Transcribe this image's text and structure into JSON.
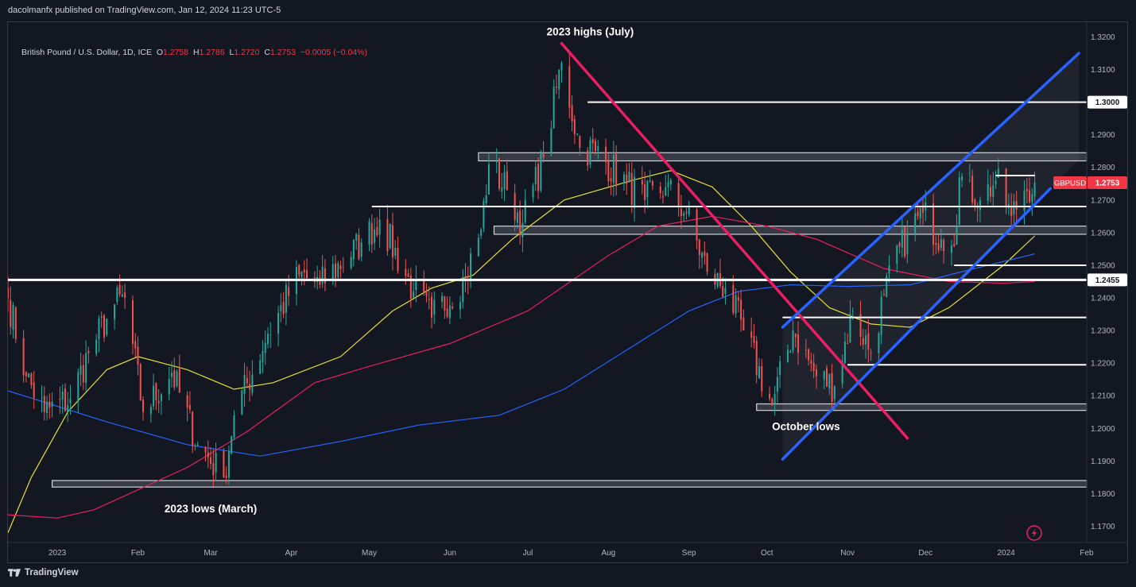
{
  "publisher": "dacolmanfx published on TradingView.com, Jan 12, 2024 11:23 UTC-5",
  "footer": {
    "brand": "TradingView",
    "logo_icon": "tradingview-logo-icon"
  },
  "legend": {
    "symbol": "British Pound / U.S. Dollar, 1D, ICE",
    "open_label": "O",
    "open": "1.2758",
    "high_label": "H",
    "high": "1.2786",
    "low_label": "L",
    "low": "1.2720",
    "close_label": "C",
    "close": "1.2753",
    "change": "−0.0005 (−0.04%)"
  },
  "colors": {
    "background": "#131722",
    "up": "#26a69a",
    "down": "#ef5350",
    "trendline_down": "#e91e63",
    "channel": "#2962ff",
    "ma_fast": "#e6e02a",
    "ma_mid": "#e91e63",
    "ma_slow": "#2962ff",
    "price_badge": "#f23645",
    "zone": "#9598a1"
  },
  "chart_data": {
    "type": "candlestick",
    "symbol": "GBPUSD",
    "timeframe": "1D",
    "ylim": [
      1.165,
      1.3245
    ],
    "y_ticks": [
      1.17,
      1.18,
      1.19,
      1.2,
      1.21,
      1.22,
      1.23,
      1.24,
      1.25,
      1.26,
      1.27,
      1.28,
      1.29,
      1.3,
      1.31,
      1.32
    ],
    "x_start": "2022-12-13",
    "x_end": "2024-02-01",
    "x_ticks": [
      {
        "date": "2023-01-01",
        "label": "2023"
      },
      {
        "date": "2023-02-01",
        "label": "Feb"
      },
      {
        "date": "2023-03-01",
        "label": "Mar"
      },
      {
        "date": "2023-04-01",
        "label": "Apr"
      },
      {
        "date": "2023-05-01",
        "label": "May"
      },
      {
        "date": "2023-06-01",
        "label": "Jun"
      },
      {
        "date": "2023-07-01",
        "label": "Jul"
      },
      {
        "date": "2023-08-01",
        "label": "Aug"
      },
      {
        "date": "2023-09-01",
        "label": "Sep"
      },
      {
        "date": "2023-10-01",
        "label": "Oct"
      },
      {
        "date": "2023-11-01",
        "label": "Nov"
      },
      {
        "date": "2023-12-01",
        "label": "Dec"
      },
      {
        "date": "2024-01-01",
        "label": "2024"
      },
      {
        "date": "2024-02-01",
        "label": "Feb"
      }
    ],
    "close_anchors": [
      [
        "2022-12-13",
        1.24
      ],
      [
        "2022-12-20",
        1.216
      ],
      [
        "2022-12-27",
        1.205
      ],
      [
        "2023-01-06",
        1.209
      ],
      [
        "2023-01-13",
        1.223
      ],
      [
        "2023-01-23",
        1.238
      ],
      [
        "2023-01-27",
        1.24
      ],
      [
        "2023-02-03",
        1.205
      ],
      [
        "2023-02-14",
        1.217
      ],
      [
        "2023-02-24",
        1.195
      ],
      [
        "2023-03-06",
        1.185
      ],
      [
        "2023-03-10",
        1.204
      ],
      [
        "2023-03-23",
        1.229
      ],
      [
        "2023-04-04",
        1.247
      ],
      [
        "2023-04-12",
        1.244
      ],
      [
        "2023-04-28",
        1.257
      ],
      [
        "2023-05-05",
        1.264
      ],
      [
        "2023-05-18",
        1.242
      ],
      [
        "2023-05-25",
        1.234
      ],
      [
        "2023-06-07",
        1.246
      ],
      [
        "2023-06-13",
        1.261
      ],
      [
        "2023-06-16",
        1.281
      ],
      [
        "2023-06-23",
        1.273
      ],
      [
        "2023-06-29",
        1.263
      ],
      [
        "2023-07-07",
        1.283
      ],
      [
        "2023-07-14",
        1.312
      ],
      [
        "2023-07-21",
        1.286
      ],
      [
        "2023-07-27",
        1.285
      ],
      [
        "2023-08-08",
        1.275
      ],
      [
        "2023-08-15",
        1.27
      ],
      [
        "2023-08-23",
        1.274
      ],
      [
        "2023-08-31",
        1.266
      ],
      [
        "2023-09-08",
        1.248
      ],
      [
        "2023-09-15",
        1.243
      ],
      [
        "2023-09-22",
        1.23
      ],
      [
        "2023-10-03",
        1.207
      ],
      [
        "2023-10-11",
        1.23
      ],
      [
        "2023-10-20",
        1.216
      ],
      [
        "2023-10-27",
        1.213
      ],
      [
        "2023-11-03",
        1.236
      ],
      [
        "2023-11-10",
        1.223
      ],
      [
        "2023-11-15",
        1.241
      ],
      [
        "2023-11-24",
        1.26
      ],
      [
        "2023-11-30",
        1.266
      ],
      [
        "2023-12-07",
        1.258
      ],
      [
        "2023-12-13",
        1.262
      ],
      [
        "2023-12-14",
        1.277
      ],
      [
        "2023-12-22",
        1.27
      ],
      [
        "2023-12-28",
        1.276
      ],
      [
        "2024-01-03",
        1.265
      ],
      [
        "2024-01-08",
        1.273
      ],
      [
        "2024-01-12",
        1.2753
      ]
    ],
    "moving_averages": [
      {
        "color": "#e6e02a",
        "points": [
          [
            "2022-12-13",
            1.168
          ],
          [
            "2022-12-22",
            1.185
          ],
          [
            "2023-01-05",
            1.205
          ],
          [
            "2023-01-20",
            1.218
          ],
          [
            "2023-02-01",
            1.222
          ],
          [
            "2023-02-20",
            1.218
          ],
          [
            "2023-03-10",
            1.212
          ],
          [
            "2023-03-25",
            1.214
          ],
          [
            "2023-04-20",
            1.222
          ],
          [
            "2023-05-10",
            1.236
          ],
          [
            "2023-05-25",
            1.243
          ],
          [
            "2023-06-10",
            1.247
          ],
          [
            "2023-06-25",
            1.258
          ],
          [
            "2023-07-15",
            1.27
          ],
          [
            "2023-08-10",
            1.276
          ],
          [
            "2023-08-25",
            1.279
          ],
          [
            "2023-09-10",
            1.274
          ],
          [
            "2023-09-25",
            1.262
          ],
          [
            "2023-10-10",
            1.248
          ],
          [
            "2023-10-25",
            1.237
          ],
          [
            "2023-11-10",
            1.232
          ],
          [
            "2023-11-25",
            1.231
          ],
          [
            "2023-12-10",
            1.237
          ],
          [
            "2023-12-31",
            1.25
          ],
          [
            "2024-01-12",
            1.259
          ]
        ]
      },
      {
        "color": "#e91e63",
        "points": [
          [
            "2022-12-13",
            1.1735
          ],
          [
            "2023-01-01",
            1.1725
          ],
          [
            "2023-01-15",
            1.175
          ],
          [
            "2023-02-20",
            1.188
          ],
          [
            "2023-03-15",
            1.199
          ],
          [
            "2023-04-10",
            1.214
          ],
          [
            "2023-05-01",
            1.219
          ],
          [
            "2023-06-01",
            1.226
          ],
          [
            "2023-07-01",
            1.236
          ],
          [
            "2023-08-01",
            1.253
          ],
          [
            "2023-08-20",
            1.262
          ],
          [
            "2023-09-10",
            1.265
          ],
          [
            "2023-10-01",
            1.262
          ],
          [
            "2023-10-20",
            1.258
          ],
          [
            "2023-11-15",
            1.249
          ],
          [
            "2023-12-10",
            1.245
          ],
          [
            "2023-12-31",
            1.2445
          ],
          [
            "2024-01-12",
            1.245
          ]
        ]
      },
      {
        "color": "#2962ff",
        "points": [
          [
            "2022-12-13",
            1.2115
          ],
          [
            "2023-01-20",
            1.202
          ],
          [
            "2023-02-20",
            1.195
          ],
          [
            "2023-03-20",
            1.1915
          ],
          [
            "2023-04-20",
            1.196
          ],
          [
            "2023-05-20",
            1.201
          ],
          [
            "2023-06-20",
            1.204
          ],
          [
            "2023-07-15",
            1.212
          ],
          [
            "2023-08-10",
            1.225
          ],
          [
            "2023-09-01",
            1.236
          ],
          [
            "2023-09-20",
            1.242
          ],
          [
            "2023-10-10",
            1.244
          ],
          [
            "2023-11-01",
            1.2435
          ],
          [
            "2023-11-25",
            1.244
          ],
          [
            "2023-12-20",
            1.249
          ],
          [
            "2024-01-12",
            1.2535
          ]
        ]
      }
    ],
    "horizontal_levels": [
      {
        "price": 1.3,
        "from": "2023-07-24",
        "label": "1.3000"
      },
      {
        "price": 1.2775,
        "from": "2023-12-28",
        "to": "2024-01-12"
      },
      {
        "price": 1.268,
        "from": "2023-05-02"
      },
      {
        "price": 1.25,
        "from": "2023-12-12"
      },
      {
        "price": 1.2455,
        "from": "2022-12-13",
        "label": "1.2455",
        "thick": true
      },
      {
        "price": 1.234,
        "from": "2023-10-07"
      },
      {
        "price": 1.2195,
        "from": "2023-11-01"
      }
    ],
    "zones": [
      {
        "low": 1.282,
        "high": 1.2845,
        "from": "2023-06-12"
      },
      {
        "low": 1.2595,
        "high": 1.262,
        "from": "2023-06-18"
      },
      {
        "low": 1.2055,
        "high": 1.2075,
        "from": "2023-09-27"
      },
      {
        "low": 1.182,
        "high": 1.184,
        "from": "2022-12-30"
      }
    ],
    "trendlines": [
      {
        "name": "downtrend",
        "color": "#e91e63",
        "from": [
          "2023-07-14",
          1.318
        ],
        "to": [
          "2023-11-24",
          1.197
        ]
      },
      {
        "name": "channel-upper",
        "color": "#2962ff",
        "from": [
          "2023-10-07",
          1.231
        ],
        "to": [
          "2024-01-29",
          1.315
        ]
      },
      {
        "name": "channel-lower",
        "color": "#2962ff",
        "from": [
          "2023-10-07",
          1.1905
        ],
        "to": [
          "2024-01-18",
          1.2735
        ]
      }
    ],
    "projection_zone": {
      "from": "2023-10-07",
      "to": "2024-01-29"
    },
    "annotations": [
      {
        "text": "2023 highs (July)",
        "date": "2023-07-25",
        "price": 1.3205
      },
      {
        "text": "2023 lows (March)",
        "date": "2023-03-01",
        "price": 1.1743
      },
      {
        "text": "October lows",
        "date": "2023-10-16",
        "price": 1.1995
      }
    ],
    "last_price": {
      "symbol": "GBPUSD",
      "value": "1.2753",
      "price": 1.2753
    }
  }
}
